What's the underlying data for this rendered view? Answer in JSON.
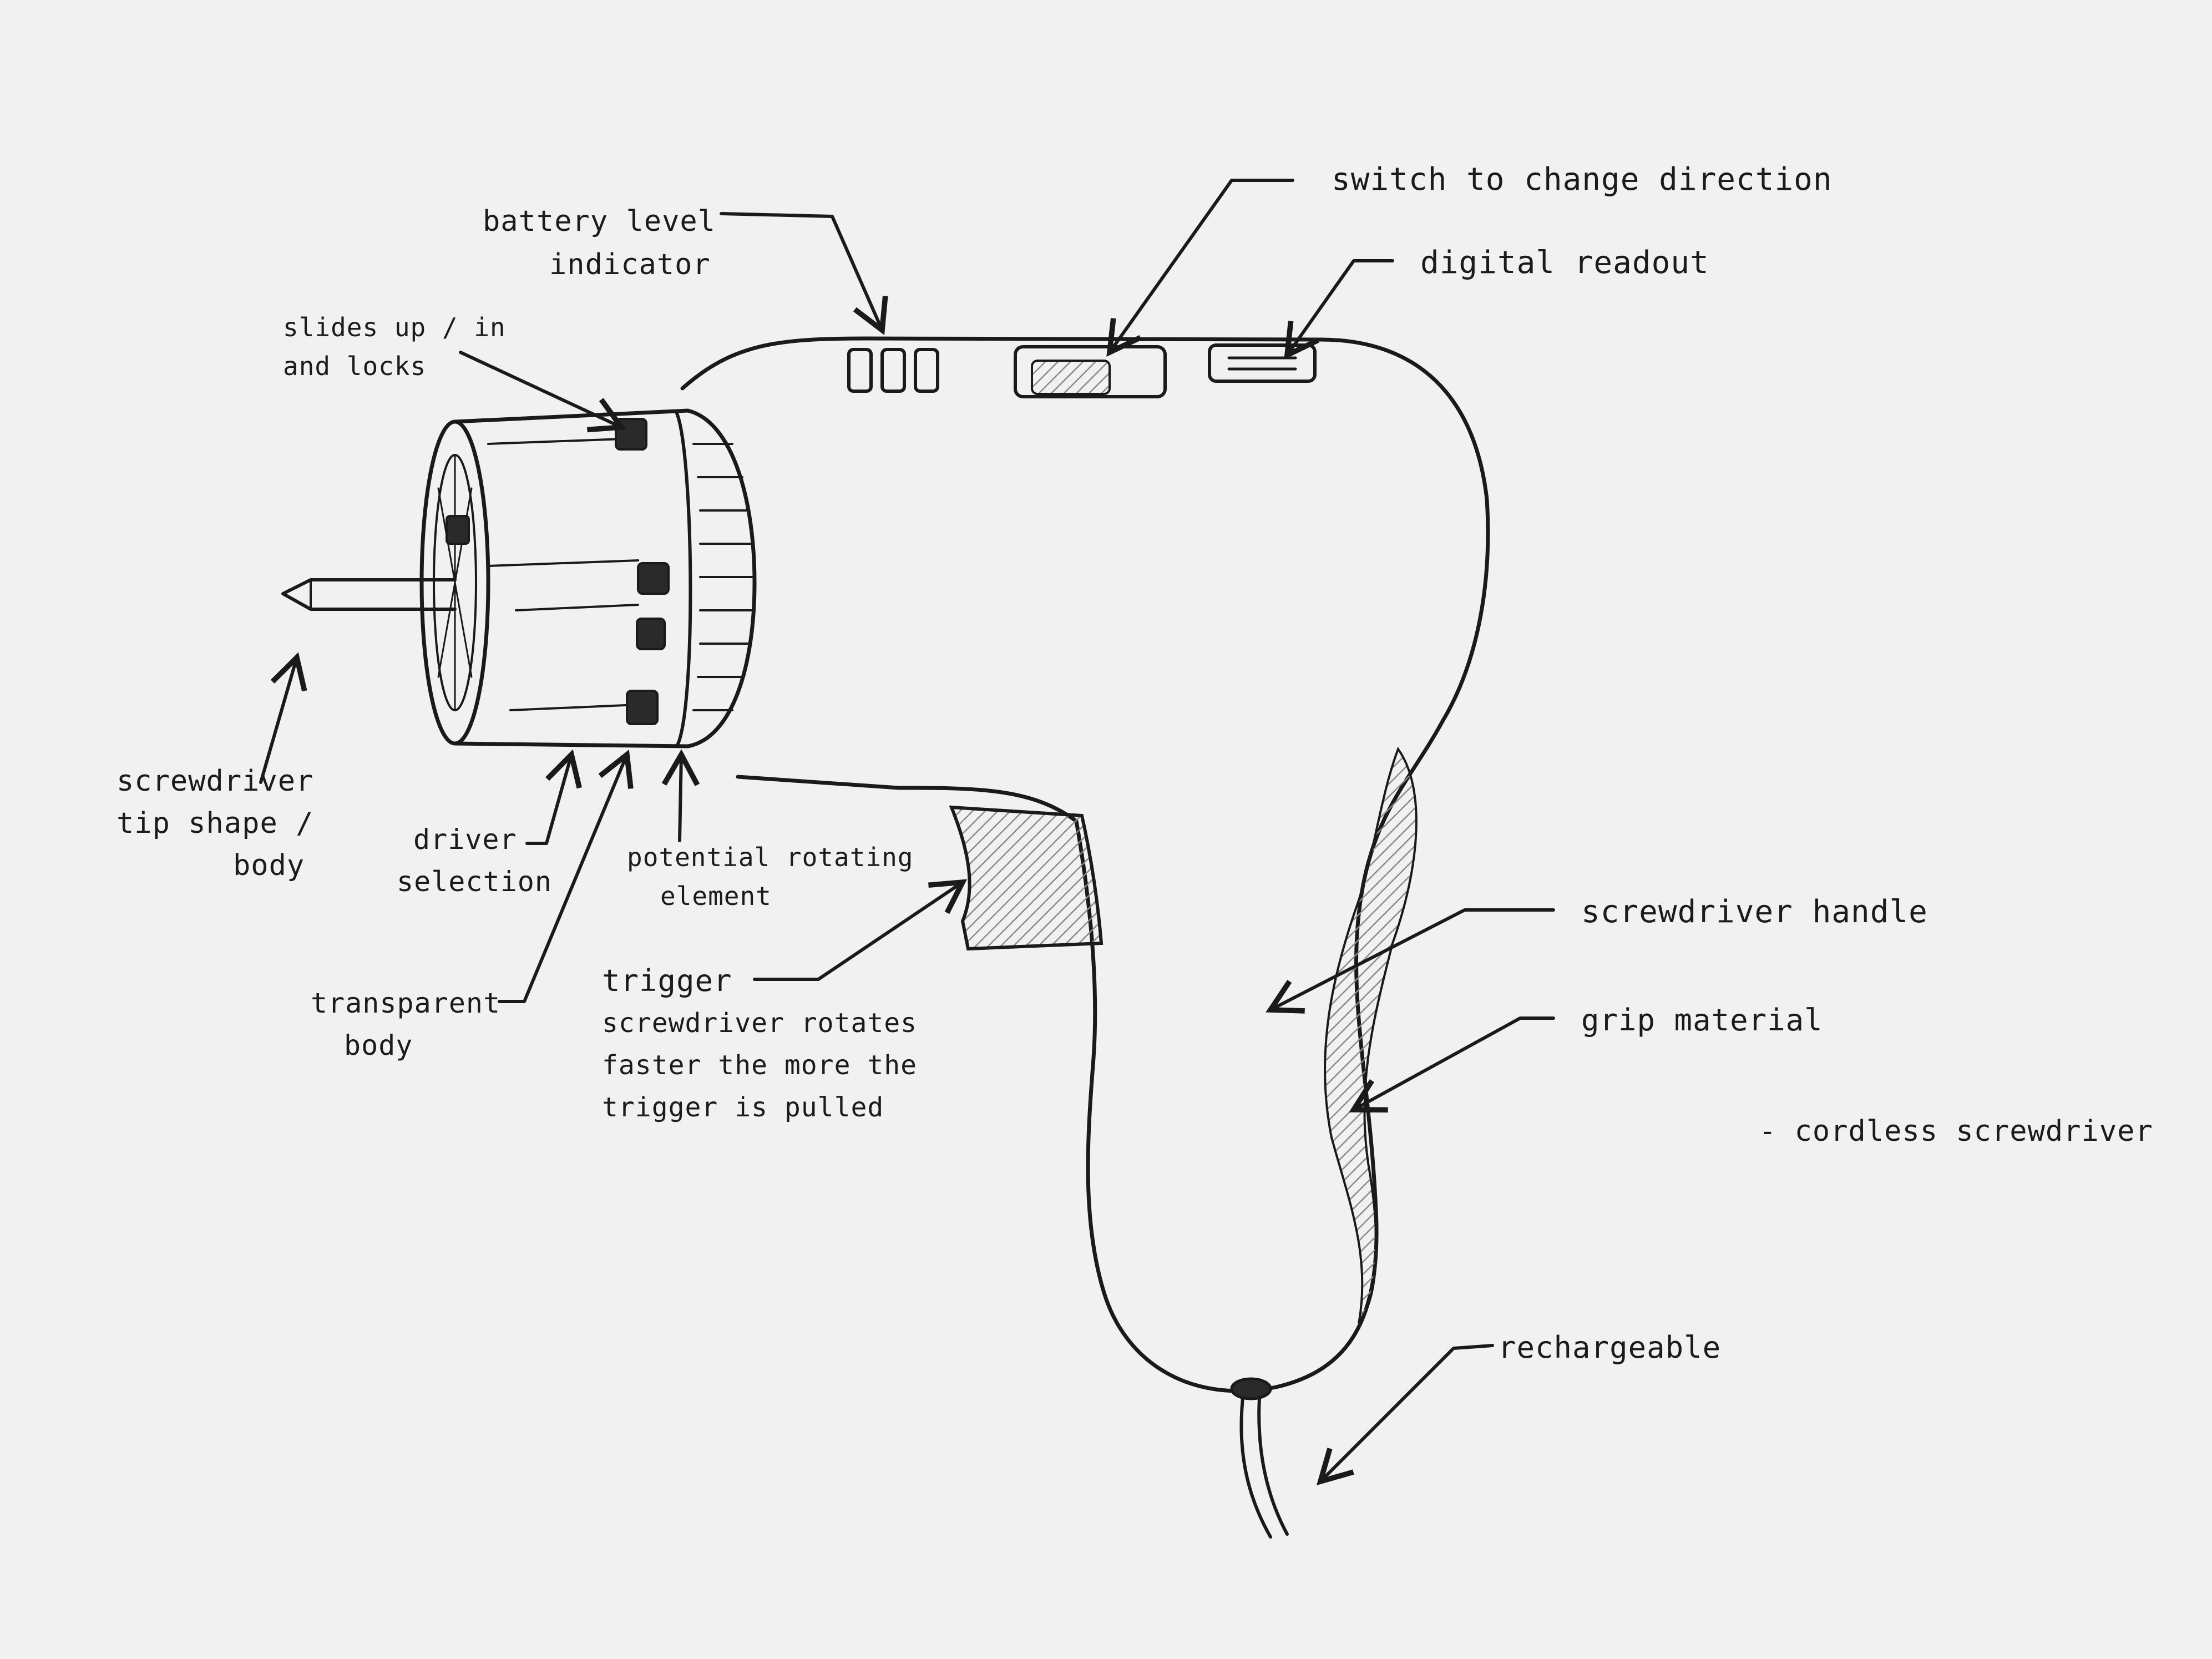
{
  "colors": {
    "paper": "#f1f1f1",
    "ink": "#1a1a1a",
    "shade": "#9a9a9a",
    "button_fill": "#2a2a2a"
  },
  "labels": {
    "battery": [
      "battery level",
      "indicator"
    ],
    "switch": "switch to change direction",
    "readout": "digital readout",
    "slides": [
      "slides up / in",
      "and locks"
    ],
    "tip": [
      "screwdriver",
      "tip shape /",
      "body"
    ],
    "driver_selection": [
      "driver",
      "selection"
    ],
    "rotating": [
      "potential rotating",
      "element"
    ],
    "transparent": [
      "transparent",
      "body"
    ],
    "trigger": [
      "trigger",
      "screwdriver rotates",
      "faster the more the",
      "trigger is pulled"
    ],
    "handle": "screwdriver handle",
    "grip": "grip material",
    "cordless": "- cordless screwdriver",
    "rechargeable": "rechargeable"
  }
}
